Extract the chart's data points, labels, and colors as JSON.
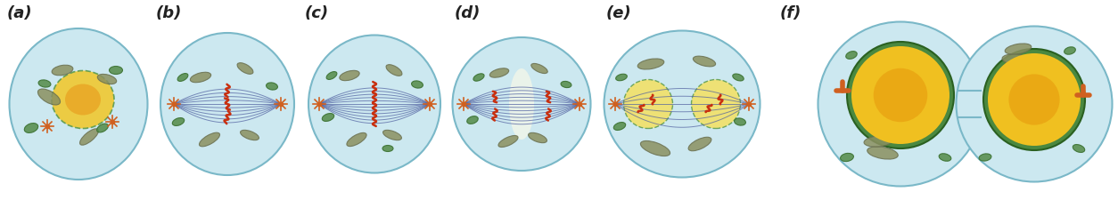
{
  "background": "#ffffff",
  "cell_fill": "#cce8f0",
  "cell_edge": "#7ab8c8",
  "nucleus_fill": "#f0c030",
  "nucleus_edge": "#c8a020",
  "nucleolus_fill": "#e8a820",
  "nuclear_membrane_color": "#5a9a50",
  "mito_fill": "#8a9060",
  "mito_edge": "#6a7050",
  "chloro_fill": "#5a9050",
  "chloro_edge": "#3a7030",
  "spindle_color": "#5060a0",
  "chromo_color": "#c83010",
  "centrosome_color": "#d06020",
  "labels": [
    "(a)",
    "(b)",
    "(c)",
    "(d)",
    "(e)",
    "(f)"
  ],
  "label_fontsize": 13,
  "label_style": "italic",
  "label_weight": "bold"
}
